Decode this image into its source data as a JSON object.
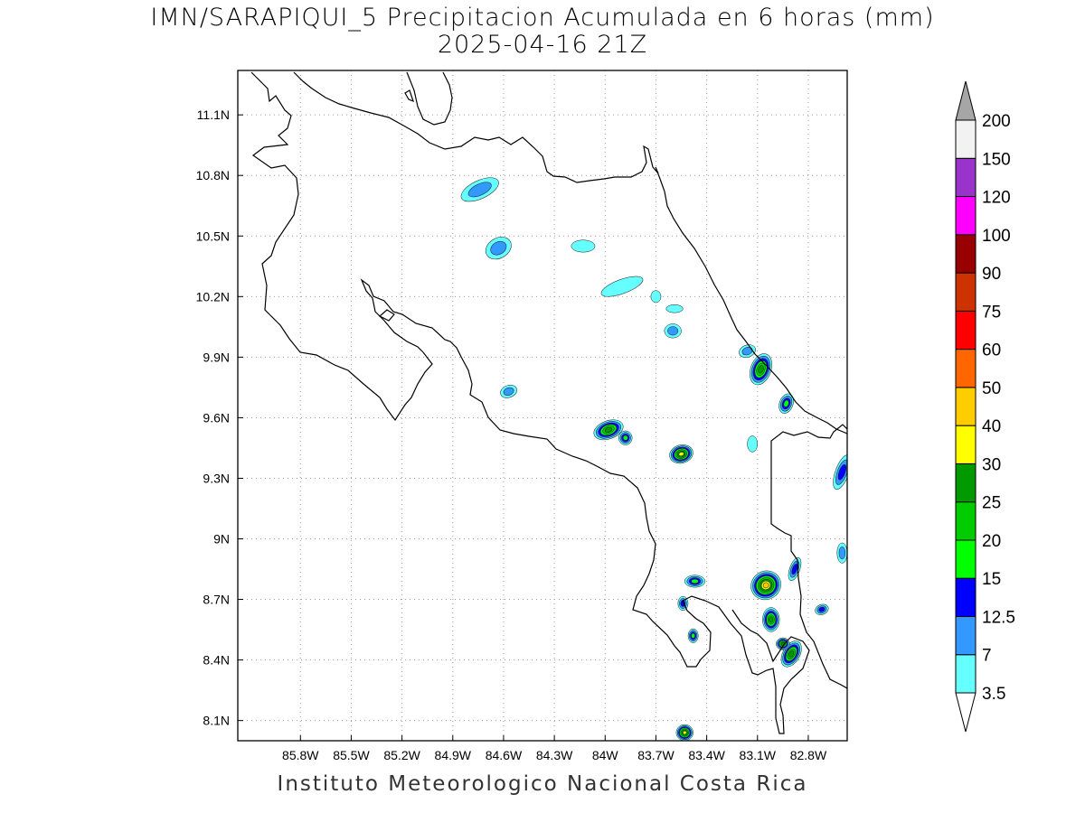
{
  "title_line1": "IMN/SARAPIQUI_5 Precipitacion Acumulada en 6 horas (mm)",
  "title_line2": "2025-04-16 21Z",
  "footer": "Instituto Meteorologico Nacional Costa Rica",
  "map": {
    "lon_range": [
      -86.17,
      -82.57
    ],
    "lat_range": [
      8.0,
      11.32
    ],
    "lon_ticks": [
      {
        "value": -85.8,
        "label": "85.8W"
      },
      {
        "value": -85.5,
        "label": "85.5W"
      },
      {
        "value": -85.2,
        "label": "85.2W"
      },
      {
        "value": -84.9,
        "label": "84.9W"
      },
      {
        "value": -84.6,
        "label": "84.6W"
      },
      {
        "value": -84.3,
        "label": "84.3W"
      },
      {
        "value": -84.0,
        "label": "84W"
      },
      {
        "value": -83.7,
        "label": "83.7W"
      },
      {
        "value": -83.4,
        "label": "83.4W"
      },
      {
        "value": -83.1,
        "label": "83.1W"
      },
      {
        "value": -82.8,
        "label": "82.8W"
      }
    ],
    "lat_ticks": [
      {
        "value": 11.1,
        "label": "11.1N"
      },
      {
        "value": 10.8,
        "label": "10.8N"
      },
      {
        "value": 10.5,
        "label": "10.5N"
      },
      {
        "value": 10.2,
        "label": "10.2N"
      },
      {
        "value": 9.9,
        "label": "9.9N"
      },
      {
        "value": 9.6,
        "label": "9.6N"
      },
      {
        "value": 9.3,
        "label": "9.3N"
      },
      {
        "value": 9.0,
        "label": "9N"
      },
      {
        "value": 8.7,
        "label": "8.7N"
      },
      {
        "value": 8.4,
        "label": "8.4N"
      },
      {
        "value": 8.1,
        "label": "8.1N"
      }
    ],
    "grid": true,
    "precip_cells": [
      {
        "lon": -84.74,
        "lat": 10.73,
        "rx": 0.12,
        "ry": 0.045,
        "rot": -25,
        "mm": 7
      },
      {
        "lon": -84.63,
        "lat": 10.44,
        "rx": 0.08,
        "ry": 0.05,
        "rot": -30,
        "mm": 7
      },
      {
        "lon": -84.13,
        "lat": 10.45,
        "rx": 0.07,
        "ry": 0.03,
        "rot": 0,
        "mm": 3.5
      },
      {
        "lon": -83.9,
        "lat": 10.25,
        "rx": 0.13,
        "ry": 0.035,
        "rot": -20,
        "mm": 3.5
      },
      {
        "lon": -83.7,
        "lat": 10.2,
        "rx": 0.03,
        "ry": 0.03,
        "rot": 0,
        "mm": 3.5
      },
      {
        "lon": -83.59,
        "lat": 10.14,
        "rx": 0.05,
        "ry": 0.02,
        "rot": 0,
        "mm": 3.5
      },
      {
        "lon": -83.6,
        "lat": 10.03,
        "rx": 0.05,
        "ry": 0.035,
        "rot": 0,
        "mm": 7
      },
      {
        "lon": -84.57,
        "lat": 9.73,
        "rx": 0.05,
        "ry": 0.03,
        "rot": -20,
        "mm": 7
      },
      {
        "lon": -83.98,
        "lat": 9.54,
        "rx": 0.09,
        "ry": 0.045,
        "rot": -20,
        "mm": 25
      },
      {
        "lon": -83.88,
        "lat": 9.5,
        "rx": 0.04,
        "ry": 0.035,
        "rot": 0,
        "mm": 15
      },
      {
        "lon": -83.55,
        "lat": 9.42,
        "rx": 0.07,
        "ry": 0.045,
        "rot": -15,
        "mm": 30
      },
      {
        "lon": -83.08,
        "lat": 9.84,
        "rx": 0.06,
        "ry": 0.08,
        "rot": 20,
        "mm": 25
      },
      {
        "lon": -82.93,
        "lat": 9.67,
        "rx": 0.04,
        "ry": 0.05,
        "rot": 20,
        "mm": 15
      },
      {
        "lon": -83.16,
        "lat": 9.93,
        "rx": 0.05,
        "ry": 0.03,
        "rot": -20,
        "mm": 7
      },
      {
        "lon": -83.13,
        "lat": 9.47,
        "rx": 0.03,
        "ry": 0.04,
        "rot": 0,
        "mm": 3.5
      },
      {
        "lon": -82.6,
        "lat": 9.33,
        "rx": 0.04,
        "ry": 0.09,
        "rot": 20,
        "mm": 12.5
      },
      {
        "lon": -82.6,
        "lat": 8.93,
        "rx": 0.03,
        "ry": 0.05,
        "rot": 0,
        "mm": 7
      },
      {
        "lon": -83.47,
        "lat": 8.79,
        "rx": 0.06,
        "ry": 0.03,
        "rot": 0,
        "mm": 15
      },
      {
        "lon": -83.05,
        "lat": 8.77,
        "rx": 0.09,
        "ry": 0.07,
        "rot": -30,
        "mm": 40
      },
      {
        "lon": -83.02,
        "lat": 8.6,
        "rx": 0.05,
        "ry": 0.06,
        "rot": 0,
        "mm": 25
      },
      {
        "lon": -82.9,
        "lat": 8.43,
        "rx": 0.05,
        "ry": 0.07,
        "rot": 30,
        "mm": 25
      },
      {
        "lon": -82.95,
        "lat": 8.48,
        "rx": 0.04,
        "ry": 0.03,
        "rot": 0,
        "mm": 25
      },
      {
        "lon": -83.54,
        "lat": 8.68,
        "rx": 0.03,
        "ry": 0.035,
        "rot": 0,
        "mm": 12.5
      },
      {
        "lon": -83.48,
        "lat": 8.52,
        "rx": 0.03,
        "ry": 0.035,
        "rot": 0,
        "mm": 15
      },
      {
        "lon": -82.72,
        "lat": 8.65,
        "rx": 0.04,
        "ry": 0.025,
        "rot": -20,
        "mm": 12.5
      },
      {
        "lon": -83.53,
        "lat": 8.04,
        "rx": 0.05,
        "ry": 0.04,
        "rot": 0,
        "mm": 30
      },
      {
        "lon": -82.88,
        "lat": 8.85,
        "rx": 0.03,
        "ry": 0.06,
        "rot": 20,
        "mm": 12.5
      }
    ]
  },
  "colorbar": {
    "labels": [
      "3.5",
      "7",
      "12.5",
      "15",
      "20",
      "25",
      "30",
      "40",
      "50",
      "60",
      "75",
      "90",
      "100",
      "120",
      "150",
      "200"
    ],
    "colors": [
      "#66ffff",
      "#3399ff",
      "#0000ff",
      "#00ff00",
      "#00cc00",
      "#009900",
      "#ffff00",
      "#ffcc00",
      "#ff6600",
      "#ff0000",
      "#cc3300",
      "#990000",
      "#ff00ff",
      "#9933cc",
      "#f2f2f2",
      "#a6a6a6"
    ],
    "under_color": "#ffffff",
    "over_color": "#a6a6a6"
  }
}
